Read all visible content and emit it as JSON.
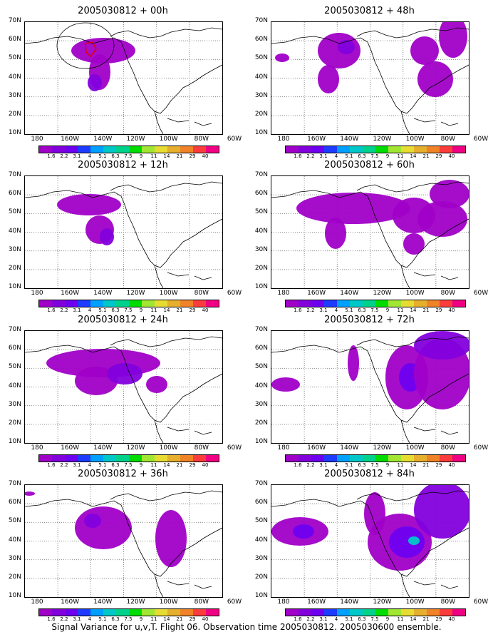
{
  "caption": "Signal Variance for u,v,T. Flight 06. Observation time 2005030812. 2005030600 ensemble.",
  "y_ticks": [
    "70N",
    "60N",
    "50N",
    "40N",
    "30N",
    "20N",
    "10N"
  ],
  "x_ticks": [
    "180",
    "160W",
    "140W",
    "120W",
    "100W",
    "80W",
    "60W"
  ],
  "colorbar": {
    "labels": [
      "1.6",
      "2.2",
      "3.1",
      "4",
      "5.1",
      "6.3",
      "7.5",
      "9",
      "11",
      "14",
      "21",
      "29",
      "40"
    ],
    "colors": [
      "#a000c8",
      "#8200dc",
      "#6e00f0",
      "#1e3cff",
      "#00a0ff",
      "#00c8c8",
      "#00d28c",
      "#00dc00",
      "#a0e632",
      "#e6dc32",
      "#e6af2d",
      "#f08228",
      "#fa3c3c",
      "#f00082"
    ]
  },
  "panels": [
    {
      "title": "2005030812 + 00h"
    },
    {
      "title": "2005030812 + 48h"
    },
    {
      "title": "2005030812 + 12h"
    },
    {
      "title": "2005030812 + 60h"
    },
    {
      "title": "2005030812 + 24h"
    },
    {
      "title": "2005030812 + 72h"
    },
    {
      "title": "2005030812 + 36h"
    },
    {
      "title": "2005030812 + 84h"
    }
  ]
}
